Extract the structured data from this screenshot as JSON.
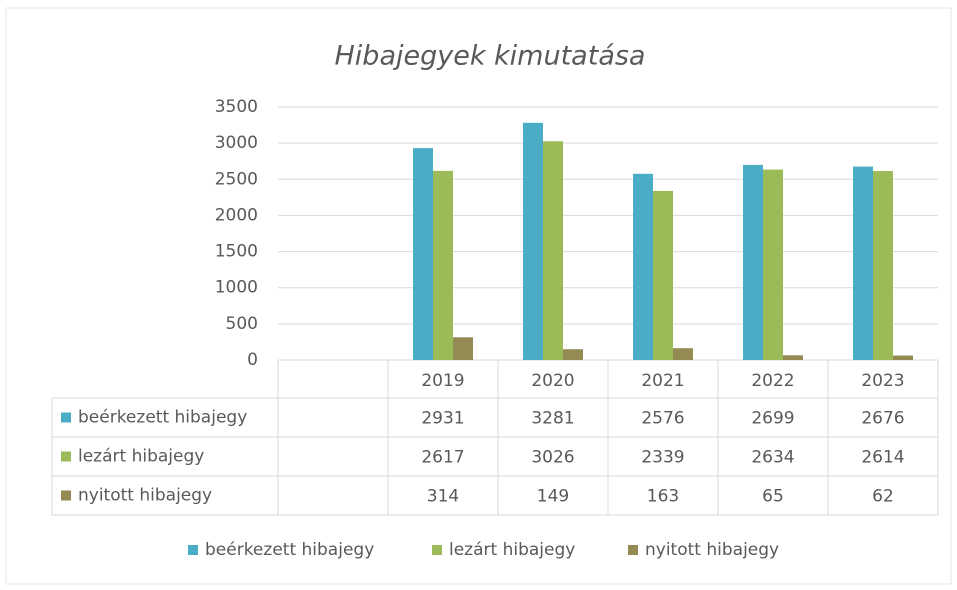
{
  "chart_data": {
    "type": "bar",
    "title": "Hibajegyek kimutatása",
    "categories": [
      null,
      "2019",
      "2020",
      "2021",
      "2022",
      "2023"
    ],
    "series": [
      {
        "name": "beérkezett hibajegy",
        "color": "#4bacc6",
        "values": [
          null,
          2931,
          3281,
          2576,
          2699,
          2676
        ]
      },
      {
        "name": "lezárt hibajegy",
        "color": "#9bbb59",
        "values": [
          null,
          2617,
          3026,
          2339,
          2634,
          2614
        ]
      },
      {
        "name": "nyitott hibajegy",
        "color": "#948a54",
        "values": [
          null,
          314,
          149,
          163,
          65,
          62
        ]
      }
    ],
    "ylim": [
      0,
      3500
    ],
    "yticks": [
      0,
      500,
      1000,
      1500,
      2000,
      2500,
      3000,
      3500
    ],
    "grid": true,
    "legend": "bottom"
  }
}
